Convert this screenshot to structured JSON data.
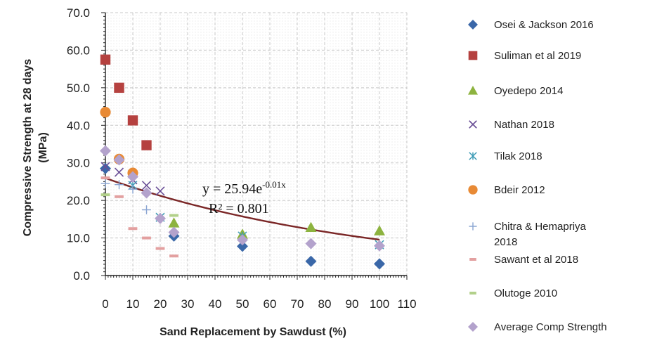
{
  "chart_data": {
    "type": "scatter",
    "title": "",
    "xlabel": "Sand Replacement by Sawdust (%)",
    "ylabel_line1": "Compressive Strength at 28 days",
    "ylabel_line2": "(MPa)",
    "xlim": [
      0,
      110
    ],
    "ylim": [
      0,
      70
    ],
    "x_ticks": [
      "0",
      "10",
      "20",
      "30",
      "40",
      "50",
      "60",
      "70",
      "80",
      "90",
      "100",
      "110"
    ],
    "y_ticks": [
      "0.0",
      "10.0",
      "20.0",
      "30.0",
      "40.0",
      "50.0",
      "60.0",
      "70.0"
    ],
    "grid": "dashed",
    "legend_position": "right",
    "series": [
      {
        "name": "Osei & Jackson 2016",
        "marker": "diamond",
        "color": "#3a67a8",
        "points": [
          [
            0,
            28.5
          ],
          [
            25,
            10.5
          ],
          [
            50,
            7.8
          ],
          [
            75,
            3.8
          ],
          [
            100,
            3.1
          ]
        ]
      },
      {
        "name": "Suliman et al 2019",
        "marker": "square",
        "color": "#b5413f",
        "points": [
          [
            0,
            57.5
          ],
          [
            5,
            50.0
          ],
          [
            10,
            41.3
          ],
          [
            15,
            34.7
          ]
        ]
      },
      {
        "name": "Oyedepo 2014",
        "marker": "triangle",
        "color": "#8db33f",
        "points": [
          [
            25,
            14.0
          ],
          [
            50,
            11.0
          ],
          [
            75,
            12.8
          ],
          [
            100,
            11.9
          ]
        ]
      },
      {
        "name": "Nathan 2018",
        "marker": "x",
        "color": "#6a4f96",
        "points": [
          [
            0,
            29.0
          ],
          [
            5,
            27.5
          ],
          [
            10,
            25.5
          ],
          [
            15,
            24.0
          ],
          [
            20,
            22.5
          ]
        ]
      },
      {
        "name": "Tilak 2018",
        "marker": "star",
        "color": "#3d9bb5",
        "points": [
          [
            10,
            24.0
          ],
          [
            20,
            15.5
          ],
          [
            50,
            10.5
          ],
          [
            100,
            8.2
          ]
        ]
      },
      {
        "name": "Bdeir 2012",
        "marker": "circle",
        "color": "#e88a35",
        "points": [
          [
            0,
            43.5
          ],
          [
            5,
            31.0
          ],
          [
            10,
            27.3
          ]
        ]
      },
      {
        "name": "Chitra & Hemapriya 2018",
        "marker": "plus",
        "color": "#8aa5d2",
        "points": [
          [
            0,
            24.5
          ],
          [
            5,
            24.2
          ],
          [
            10,
            23.0
          ],
          [
            15,
            17.5
          ]
        ]
      },
      {
        "name": "Sawant et al 2018",
        "marker": "dash",
        "color": "#e3a0a0",
        "points": [
          [
            0,
            26.0
          ],
          [
            5,
            21.0
          ],
          [
            10,
            12.5
          ],
          [
            15,
            10.0
          ],
          [
            20,
            7.2
          ],
          [
            25,
            5.2
          ]
        ]
      },
      {
        "name": "Olutoge 2010",
        "marker": "dash",
        "color": "#b2d08a",
        "points": [
          [
            0,
            21.5
          ],
          [
            25,
            16.0
          ]
        ]
      },
      {
        "name": "Average Comp Strength",
        "marker": "diamond",
        "color": "#b3a2cc",
        "points": [
          [
            0,
            33.2
          ],
          [
            5,
            30.8
          ],
          [
            10,
            26.3
          ],
          [
            15,
            22.0
          ],
          [
            20,
            15.2
          ],
          [
            25,
            11.5
          ],
          [
            50,
            9.5
          ],
          [
            75,
            8.5
          ],
          [
            100,
            7.9
          ]
        ]
      }
    ],
    "trendline": {
      "type": "exponential",
      "a": 25.94,
      "b": -0.01,
      "x_range": [
        0,
        100
      ],
      "color": "#7a2626",
      "equation_main": "y = 25.94e",
      "equation_exp": "-0.01x",
      "r2_label": "R² = 0.801"
    }
  }
}
